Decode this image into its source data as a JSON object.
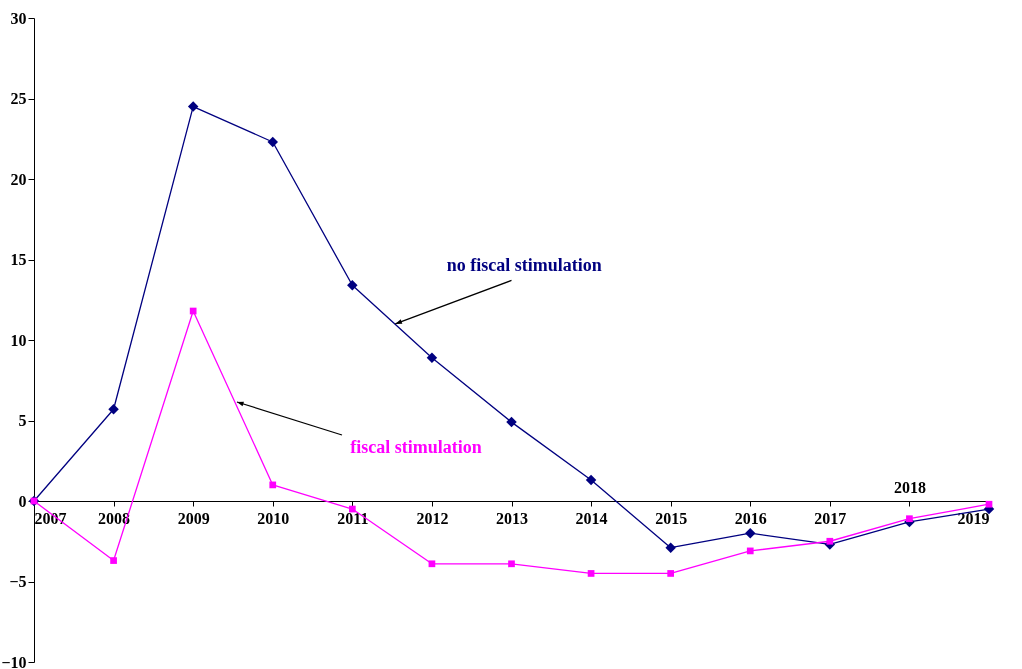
{
  "chart_data": {
    "type": "line",
    "categories": [
      "2007",
      "2008",
      "2009",
      "2010",
      "2011",
      "2012",
      "2013",
      "2014",
      "2015",
      "2016",
      "2017",
      "2018",
      "2019"
    ],
    "series": [
      {
        "name": "no fiscal stimulation",
        "color": "#000080",
        "marker": "diamond",
        "values": [
          0,
          5.7,
          24.5,
          22.3,
          13.4,
          8.9,
          4.9,
          1.3,
          -2.9,
          -2.0,
          -2.7,
          -1.3,
          -0.5
        ]
      },
      {
        "name": "fiscal stimulation",
        "color": "#ff00ff",
        "marker": "square",
        "values": [
          0,
          -3.7,
          11.8,
          1.0,
          -0.5,
          -3.9,
          -3.9,
          -4.5,
          -4.5,
          -3.1,
          -2.5,
          -1.1,
          -0.2
        ]
      }
    ],
    "ylim": [
      -10,
      30
    ],
    "yticks": [
      -10,
      -5,
      0,
      5,
      10,
      15,
      20,
      25,
      30
    ],
    "grid": false,
    "legend": false
  }
}
